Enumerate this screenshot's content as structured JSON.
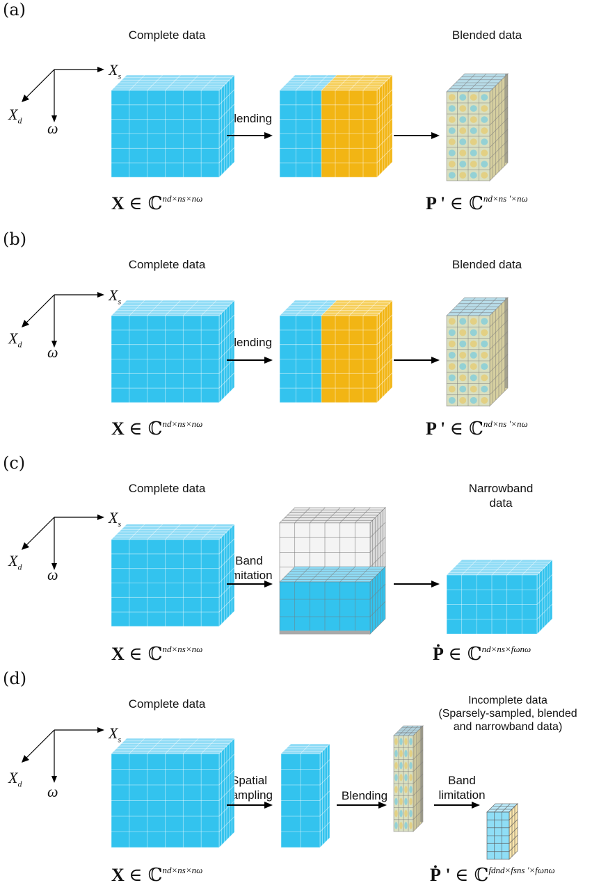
{
  "panels": [
    {
      "label": "(a)",
      "title_left": "Complete data",
      "title_right": "Blended data",
      "arrow1": "Blending",
      "eq_left": {
        "sym": "X",
        "set": "∈ ℂ",
        "exp": "nd×ns×nω"
      },
      "eq_right": {
        "sym": "P '",
        "set": "∈ ℂ",
        "exp": "nd×ns '×nω"
      }
    },
    {
      "label": "(b)",
      "title_left": "Complete data",
      "title_right": "Blended data",
      "arrow1": "Blending",
      "eq_left": {
        "sym": "X",
        "set": "∈ ℂ",
        "exp": "nd×ns×nω"
      },
      "eq_right": {
        "sym": "P '",
        "set": "∈ ℂ",
        "exp": "nd×ns '×nω"
      }
    },
    {
      "label": "(c)",
      "title_left": "Complete data",
      "title_right": "Narrowband\ndata",
      "arrow1": "Band\nlimitation",
      "eq_left": {
        "sym": "X",
        "set": "∈ ℂ",
        "exp": "nd×ns×nω"
      },
      "eq_right": {
        "sym": "Ṗ",
        "set": "∈ ℂ",
        "exp": "nd×ns×fωnω"
      }
    },
    {
      "label": "(d)",
      "title_left": "Complete data",
      "title_right": "Incomplete data\n(Sparsely-sampled, blended\nand narrowband data)",
      "arrow1": "Spatial\nsampling",
      "arrow2": "Blending",
      "arrow3": "Band\nlimitation",
      "eq_left": {
        "sym": "X",
        "set": "∈ ℂ",
        "exp": "nd×ns×nω"
      },
      "eq_right": {
        "sym": "Ṗ '",
        "set": "∈ ℂ",
        "exp": "fdnd×fsns '×fωnω"
      }
    }
  ],
  "axes": {
    "x": "X",
    "x_sub": "s",
    "y": "X",
    "y_sub": "d",
    "z": "ω"
  },
  "colors": {
    "blue": "#33c3ee",
    "blue_light": "#8fdcf6",
    "orange": "#f2b514",
    "grey": "#b9b9b9"
  }
}
